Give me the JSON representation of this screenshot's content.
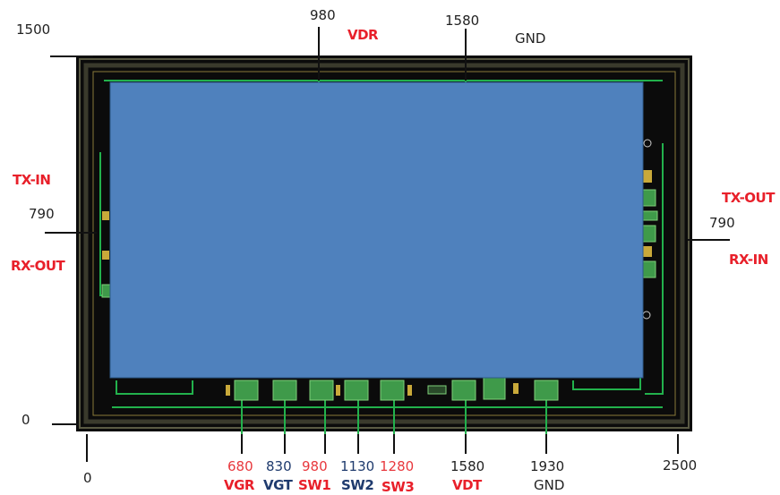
{
  "top_markers": [
    {
      "value": "980",
      "pin": "VDR",
      "pin_color": "#e8202a"
    },
    {
      "value": "1580",
      "pin": "GND",
      "pin_color": "#222222"
    }
  ],
  "corner_labels": {
    "top_left_value": "1500",
    "bottom_left_value": "0",
    "bottom_origin_value": "0",
    "bottom_right_value": "2500"
  },
  "left_markers": {
    "value": "790",
    "pin_above": "TX-IN",
    "pin_below": "RX-OUT"
  },
  "right_markers": {
    "value": "790",
    "pin_above": "TX-OUT",
    "pin_below": "RX-IN"
  },
  "bottom_markers": [
    {
      "value": "680",
      "pin": "VGR",
      "value_color": "#e8383d",
      "pin_color": "#e8202a"
    },
    {
      "value": "830",
      "pin": "VGT",
      "value_color": "#1f3b6e",
      "pin_color": "#1f3b6e"
    },
    {
      "value": "980",
      "pin": "SW1",
      "value_color": "#e8383d",
      "pin_color": "#e8202a"
    },
    {
      "value": "1130",
      "pin": "SW2",
      "value_color": "#1f3b6e",
      "pin_color": "#1f3b6e"
    },
    {
      "value": "1280",
      "pin": "SW3",
      "value_color": "#e8383d",
      "pin_color": "#e8202a"
    },
    {
      "value": "1580",
      "pin": "VDT",
      "value_color": "#222222",
      "pin_color": "#e8202a"
    },
    {
      "value": "1930",
      "pin": "GND",
      "value_color": "#222222",
      "pin_color": "#222222"
    }
  ],
  "colors": {
    "die_background": "#0b0b0b",
    "overlay_block": "#4f81bd",
    "trace_green": "#22b14c",
    "pad_green": "#3f9a4a",
    "seal_ring": "#6b6b4a"
  }
}
